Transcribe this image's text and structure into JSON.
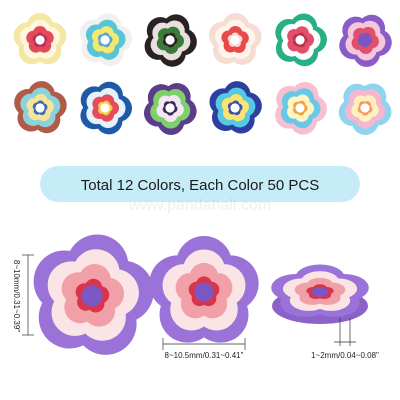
{
  "banner": {
    "text": "Total 12 Colors, Each Color 50 PCS"
  },
  "watermark": "www.pandahall.com",
  "dimensions": {
    "height": "8~10mm/0.31~0.39\"",
    "width": "8~10.5mm/0.31~0.41\"",
    "thickness": "1~2mm/0.04~0.08\""
  }
}
